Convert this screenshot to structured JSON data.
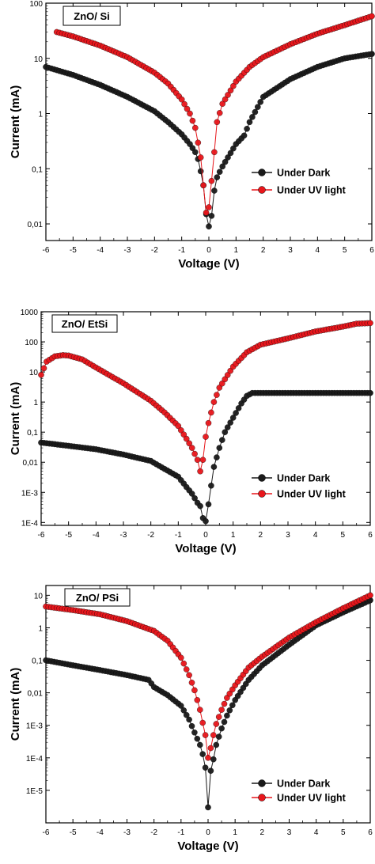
{
  "colors": {
    "dark": "#1a1a1a",
    "uv": "#e8161b",
    "frame": "#000000"
  },
  "chart_data": [
    {
      "type": "scatter",
      "title": "ZnO/ Si",
      "xlabel": "Voltage (V)",
      "ylabel": "Current (mA)",
      "xlim": [
        -6,
        6
      ],
      "ylim": [
        0.005,
        100
      ],
      "log_y": true,
      "grid": false,
      "legend_position": "center-right",
      "x_ticks": [
        "-6",
        "-5",
        "-4",
        "-3",
        "-2",
        "-1",
        "0",
        "1",
        "2",
        "3",
        "4",
        "5",
        "6"
      ],
      "y_ticks": [
        {
          "v": 0.01,
          "t": "0,01"
        },
        {
          "v": 0.1,
          "t": "0,1"
        },
        {
          "v": 1,
          "t": "1"
        },
        {
          "v": 10,
          "t": "10"
        },
        {
          "v": 100,
          "t": "100"
        }
      ],
      "series": [
        {
          "name": "Under Dark",
          "key": "dark",
          "x": [
            -6,
            -5,
            -4,
            -3,
            -2,
            -1.5,
            -1,
            -0.7,
            -0.5,
            -0.4,
            -0.3,
            -0.2,
            -0.1,
            0,
            0.1,
            0.2,
            0.3,
            0.5,
            0.7,
            1,
            1.3,
            1.5,
            2,
            3,
            4,
            5,
            6
          ],
          "y": [
            7,
            5,
            3.3,
            2,
            1.1,
            0.7,
            0.42,
            0.28,
            0.2,
            0.15,
            0.09,
            0.05,
            0.015,
            0.009,
            0.014,
            0.04,
            0.07,
            0.11,
            0.16,
            0.28,
            0.4,
            0.7,
            2,
            4.2,
            7,
            10,
            12
          ]
        },
        {
          "name": "Under UV light",
          "key": "uv",
          "x": [
            -5.6,
            -5,
            -4,
            -3,
            -2,
            -1.5,
            -1,
            -0.7,
            -0.5,
            -0.3,
            -0.2,
            -0.1,
            0,
            0.1,
            0.2,
            0.3,
            0.5,
            1,
            1.5,
            2,
            3,
            4,
            5,
            6
          ],
          "y": [
            30,
            25,
            17,
            10.5,
            5.5,
            3.5,
            1.8,
            1,
            0.55,
            0.16,
            0.05,
            0.016,
            0.02,
            0.06,
            0.2,
            0.7,
            1.5,
            3.8,
            7,
            10.5,
            18,
            28,
            40,
            58
          ]
        }
      ]
    },
    {
      "type": "scatter",
      "title": "ZnO/ EtSi",
      "xlabel": "Voltage (V)",
      "ylabel": "Current (mA)",
      "xlim": [
        -6,
        6
      ],
      "ylim": [
        8e-05,
        1000
      ],
      "log_y": true,
      "grid": false,
      "legend_position": "bottom-right",
      "x_ticks": [
        "-6",
        "-5",
        "-4",
        "-3",
        "-2",
        "-1",
        "0",
        "1",
        "2",
        "3",
        "4",
        "5",
        "6"
      ],
      "y_ticks": [
        {
          "v": 0.0001,
          "t": "1E-4"
        },
        {
          "v": 0.001,
          "t": "1E-3"
        },
        {
          "v": 0.01,
          "t": "0,01"
        },
        {
          "v": 0.1,
          "t": "0,1"
        },
        {
          "v": 1,
          "t": "1"
        },
        {
          "v": 10,
          "t": "10"
        },
        {
          "v": 100,
          "t": "100"
        },
        {
          "v": 1000,
          "t": "1000"
        }
      ],
      "series": [
        {
          "name": "Under Dark",
          "key": "dark",
          "x": [
            -6,
            -5,
            -4,
            -3,
            -2,
            -1.5,
            -1,
            -0.7,
            -0.5,
            -0.3,
            -0.2,
            -0.1,
            0,
            0.1,
            0.3,
            0.5,
            0.7,
            1,
            1.3,
            1.5,
            1.7,
            2,
            3,
            4,
            5,
            6
          ],
          "y": [
            0.045,
            0.035,
            0.027,
            0.018,
            0.011,
            0.006,
            0.0033,
            0.0015,
            0.0009,
            0.00045,
            0.00035,
            0.00014,
            0.00011,
            0.0004,
            0.007,
            0.03,
            0.1,
            0.3,
            0.9,
            1.6,
            2,
            2,
            2,
            2,
            2,
            2
          ]
        },
        {
          "name": "Under UV light",
          "key": "uv",
          "x": [
            -6,
            -5.8,
            -5.5,
            -5.2,
            -5,
            -4.5,
            -4,
            -3,
            -2,
            -1.5,
            -1,
            -0.7,
            -0.5,
            -0.3,
            -0.2,
            -0.1,
            0,
            0.1,
            0.3,
            0.5,
            1,
            1.5,
            2,
            3,
            4,
            5,
            5.5,
            6
          ],
          "y": [
            8,
            22,
            33,
            36,
            35,
            26,
            14,
            4.2,
            1.1,
            0.45,
            0.16,
            0.06,
            0.03,
            0.012,
            0.005,
            0.012,
            0.07,
            0.2,
            1,
            3,
            15,
            45,
            80,
            130,
            220,
            320,
            400,
            420
          ]
        }
      ]
    },
    {
      "type": "scatter",
      "title": "ZnO/ PSi",
      "xlabel": "Voltage (V)",
      "ylabel": "Current (mA)",
      "xlim": [
        -6,
        6
      ],
      "ylim": [
        1e-06,
        20
      ],
      "log_y": true,
      "grid": false,
      "legend_position": "bottom-right",
      "x_ticks": [
        "-6",
        "-5",
        "-4",
        "-3",
        "-2",
        "-1",
        "0",
        "1",
        "2",
        "3",
        "4",
        "5",
        "6"
      ],
      "y_ticks": [
        {
          "v": 1e-05,
          "t": "1E-5"
        },
        {
          "v": 0.0001,
          "t": "1E-4"
        },
        {
          "v": 0.001,
          "t": "1E-3"
        },
        {
          "v": 0.01,
          "t": "0,01"
        },
        {
          "v": 0.1,
          "t": "0,1"
        },
        {
          "v": 1,
          "t": "1"
        },
        {
          "v": 10,
          "t": "10"
        }
      ],
      "series": [
        {
          "name": "Under Dark",
          "key": "dark",
          "x": [
            -6,
            -5,
            -4,
            -3,
            -2.2,
            -2,
            -1.5,
            -1,
            -0.7,
            -0.5,
            -0.3,
            -0.2,
            -0.1,
            0,
            0.1,
            0.2,
            0.3,
            0.5,
            0.7,
            1,
            1.5,
            2,
            3,
            4,
            5,
            6
          ],
          "y": [
            0.1,
            0.07,
            0.05,
            0.035,
            0.025,
            0.015,
            0.0085,
            0.004,
            0.0015,
            0.0006,
            0.00025,
            0.00013,
            5e-05,
            3e-06,
            4e-05,
            9e-05,
            0.00025,
            0.0008,
            0.002,
            0.006,
            0.025,
            0.07,
            0.3,
            1.2,
            3,
            7
          ]
        },
        {
          "name": "Under UV light",
          "key": "uv",
          "x": [
            -6,
            -5,
            -4,
            -3,
            -2,
            -1.5,
            -1,
            -0.7,
            -0.5,
            -0.3,
            -0.2,
            -0.1,
            0,
            0.1,
            0.2,
            0.3,
            0.5,
            0.7,
            1,
            1.5,
            2,
            3,
            4,
            5,
            6
          ],
          "y": [
            4.5,
            3.5,
            2.6,
            1.6,
            0.8,
            0.4,
            0.12,
            0.035,
            0.012,
            0.003,
            0.0012,
            0.0005,
            0.0001,
            0.0002,
            0.0005,
            0.0011,
            0.003,
            0.007,
            0.017,
            0.06,
            0.13,
            0.5,
            1.5,
            4,
            10
          ]
        }
      ]
    }
  ]
}
